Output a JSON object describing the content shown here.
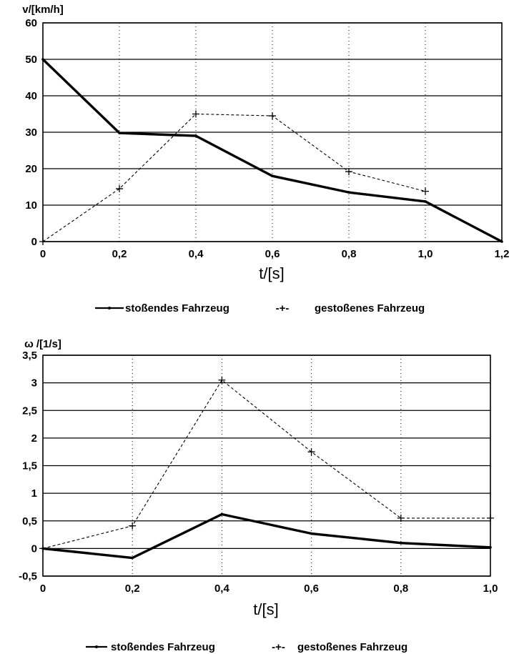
{
  "chart_data": [
    {
      "type": "line",
      "ylabel": "v/[km/h]",
      "xlabel": "t/[s]",
      "xlim": [
        0,
        1.2
      ],
      "ylim": [
        0,
        60
      ],
      "x_ticks": [
        "0",
        "0,2",
        "0,4",
        "0,6",
        "0,8",
        "1,0",
        "1,2"
      ],
      "y_ticks": [
        "0",
        "10",
        "20",
        "30",
        "40",
        "50",
        "60"
      ],
      "grid": true,
      "legend_position": "bottom",
      "series": [
        {
          "name": "stoßendes Fahrzeug",
          "style": "solid",
          "x": [
            0,
            0.2,
            0.4,
            0.6,
            0.8,
            1.0,
            1.2
          ],
          "y": [
            50,
            29.8,
            29,
            18,
            13.5,
            11,
            0
          ]
        },
        {
          "name": "gestoßenes Fahrzeug",
          "style": "dashed",
          "x": [
            0,
            0.2,
            0.4,
            0.6,
            0.8,
            1.0
          ],
          "y": [
            0,
            14.5,
            35,
            34.5,
            19.2,
            13.8
          ]
        }
      ]
    },
    {
      "type": "line",
      "ylabel": "ω /[1/s]",
      "xlabel": "t/[s]",
      "xlim": [
        0,
        1.0
      ],
      "ylim": [
        -0.5,
        3.5
      ],
      "x_ticks": [
        "0",
        "0,2",
        "0,4",
        "0,6",
        "0,8",
        "1,0"
      ],
      "y_ticks": [
        "-0,5",
        "0",
        "0,5",
        "1",
        "1,5",
        "2",
        "2,5",
        "3",
        "3,5"
      ],
      "grid": true,
      "legend_position": "bottom",
      "series": [
        {
          "name": "stoßendes Fahrzeug",
          "style": "solid",
          "x": [
            0,
            0.2,
            0.4,
            0.6,
            0.8,
            1.0
          ],
          "y": [
            0,
            -0.17,
            0.62,
            0.27,
            0.1,
            0.02
          ]
        },
        {
          "name": "gestoßenes Fahrzeug",
          "style": "dashed",
          "x": [
            0,
            0.2,
            0.4,
            0.6,
            0.8,
            1.0
          ],
          "y": [
            0,
            0.41,
            3.05,
            1.75,
            0.55,
            0.55
          ]
        }
      ]
    }
  ],
  "legend_markers": {
    "solid": "",
    "dashed": "-+-"
  },
  "colors": {
    "ink": "#000000",
    "grid": "#000000",
    "background": "#ffffff"
  }
}
